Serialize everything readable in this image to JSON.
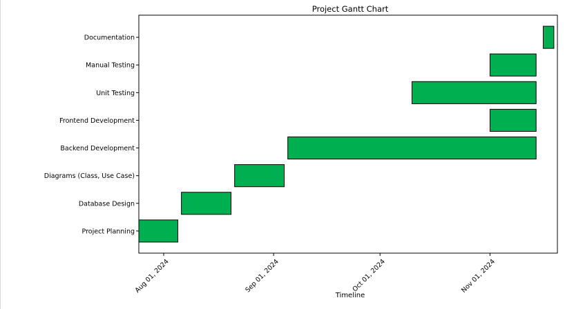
{
  "chart_data": {
    "type": "bar",
    "orientation": "horizontal-gantt",
    "title": "Project Gantt Chart",
    "xlabel": "Timeline",
    "ylabel": "",
    "grid": false,
    "legend": "none",
    "bar_color": "#00b050",
    "bar_edge_color": "#000000",
    "x_range": [
      "2024-07-25",
      "2024-11-20"
    ],
    "x_ticks": [
      "2024-08-01",
      "2024-09-01",
      "2024-10-01",
      "2024-11-01"
    ],
    "x_tick_labels": [
      "Aug 01, 2024",
      "Sep 01, 2024",
      "Oct 01, 2024",
      "Nov 01, 2024"
    ],
    "tasks": [
      {
        "name": "Project Planning",
        "start": "2024-07-25",
        "end": "2024-08-05"
      },
      {
        "name": "Database Design",
        "start": "2024-08-06",
        "end": "2024-08-20"
      },
      {
        "name": "Diagrams (Class, Use Case)",
        "start": "2024-08-21",
        "end": "2024-09-04"
      },
      {
        "name": "Backend Development",
        "start": "2024-09-05",
        "end": "2024-11-14"
      },
      {
        "name": "Frontend Development",
        "start": "2024-11-01",
        "end": "2024-11-14"
      },
      {
        "name": "Unit Testing",
        "start": "2024-10-10",
        "end": "2024-11-14"
      },
      {
        "name": "Manual Testing",
        "start": "2024-11-01",
        "end": "2024-11-14"
      },
      {
        "name": "Documentation",
        "start": "2024-11-16",
        "end": "2024-11-19"
      }
    ]
  }
}
